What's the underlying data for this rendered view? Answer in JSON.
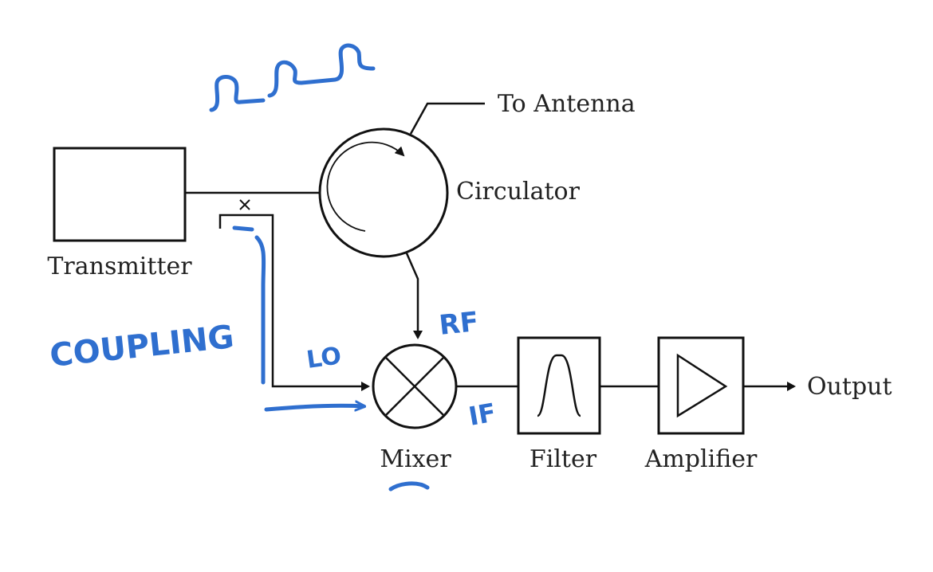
{
  "labels": {
    "transmitter": "Transmitter",
    "circulator": "Circulator",
    "to_antenna": "To Antenna",
    "mixer": "Mixer",
    "filter": "Filter",
    "amplifier": "Amplifier",
    "output": "Output"
  },
  "annotations": {
    "coupling": "COUPLING",
    "lo": "LO",
    "rf": "RF",
    "if": "IF"
  },
  "colors": {
    "line": "#111111",
    "ink": "#2f6fcf"
  }
}
